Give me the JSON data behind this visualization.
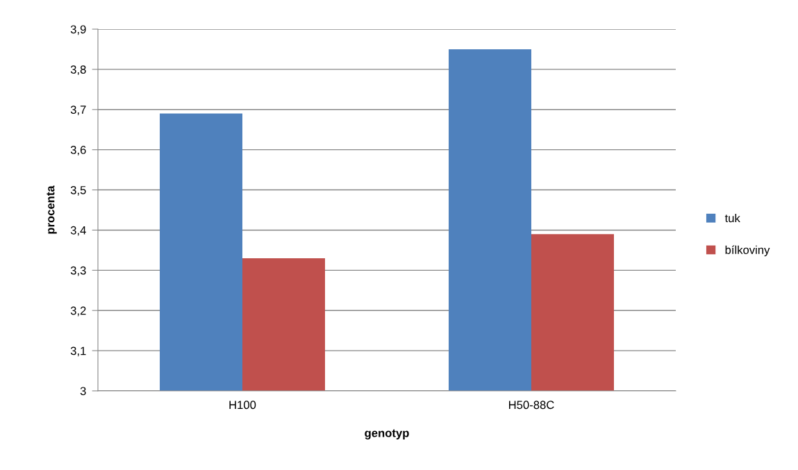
{
  "chart_data": {
    "type": "bar",
    "xlabel": "genotyp",
    "ylabel": "procenta",
    "categories": [
      "H100",
      "H50-88C"
    ],
    "series": [
      {
        "name": "tuk",
        "color": "#4f81bd",
        "values": [
          3.69,
          3.85
        ]
      },
      {
        "name": "bílkoviny",
        "color": "#c0504d",
        "values": [
          3.33,
          3.39
        ]
      }
    ],
    "ylim": [
      3,
      3.9
    ],
    "yticks": [
      3,
      {
        "value": 3.1,
        "label": "3,1"
      },
      {
        "value": 3.2,
        "label": "3,2"
      },
      {
        "value": 3.3,
        "label": "3,3"
      },
      {
        "value": 3.4,
        "label": "3,4"
      },
      {
        "value": 3.5,
        "label": "3,5"
      },
      {
        "value": 3.6,
        "label": "3,6"
      },
      {
        "value": 3.7,
        "label": "3,7"
      },
      {
        "value": 3.8,
        "label": "3,8"
      },
      {
        "value": 3.9,
        "label": "3,9"
      }
    ],
    "grid": "y",
    "legend": "right"
  }
}
